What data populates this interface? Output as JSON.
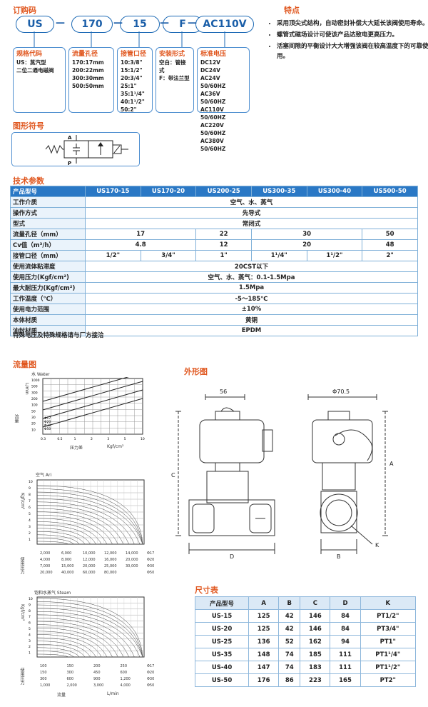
{
  "order": {
    "title": "订购码",
    "codes": [
      "US",
      "170",
      "15",
      "F",
      "AC110V"
    ],
    "dashes": [
      "—",
      "—",
      "—",
      "—"
    ],
    "boxes": [
      {
        "title": "规格代码",
        "lines": [
          "US：蒸汽型",
          "二位二通电磁阀"
        ]
      },
      {
        "title": "流量孔径",
        "lines": [
          "170:17mm",
          "200:22mm",
          "300:30mm",
          "500:50mm"
        ]
      },
      {
        "title": "接管口径",
        "lines": [
          "10:3/8\"",
          "15:1/2\"",
          "20:3/4\"",
          "25:1\"",
          "35:1¹/4\"",
          "40:1¹/2\"",
          "50:2\""
        ]
      },
      {
        "title": "安装形式",
        "lines": [
          "空白：管接式",
          "F：带法兰型"
        ]
      },
      {
        "title": "标准电压",
        "lines": [
          "DC12V",
          "DC24V",
          "AC24V  50/60HZ",
          "AC36V  50/60HZ",
          "AC110V 50/60HZ",
          "AC220V 50/60HZ",
          "AC380V 50/60HZ"
        ]
      }
    ]
  },
  "features": {
    "title": "特点",
    "items": [
      "采用顶尖式结构，自动密封补偿大大延长该阀使用寿命。",
      "螺管式磁场设计可使该产品达致电更高压力。",
      "活塞间隙的平衡设计大大增强该阀在较高温度下的可靠使用。"
    ]
  },
  "symbol": {
    "title": "图形符号",
    "label_a": "A",
    "label_p": "P"
  },
  "spec": {
    "title": "技术参数",
    "header": [
      "产品型号",
      "US170-15",
      "US170-20",
      "US200-25",
      "US300-35",
      "US300-40",
      "US500-50"
    ],
    "rows": [
      {
        "label": "工作介质",
        "cells": [
          {
            "t": "空气、水、蒸气",
            "span": 6
          }
        ]
      },
      {
        "label": "操作方式",
        "cells": [
          {
            "t": "先导式",
            "span": 6
          }
        ]
      },
      {
        "label": "型式",
        "cells": [
          {
            "t": "常闭式",
            "span": 6
          }
        ]
      },
      {
        "label": "流量孔径（mm）",
        "cells": [
          {
            "t": "17",
            "span": 2
          },
          {
            "t": "22",
            "span": 1
          },
          {
            "t": "30",
            "span": 2
          },
          {
            "t": "50",
            "span": 1
          }
        ]
      },
      {
        "label": "Cv值（m³/h）",
        "cells": [
          {
            "t": "4.8",
            "span": 2
          },
          {
            "t": "12",
            "span": 1
          },
          {
            "t": "20",
            "span": 2
          },
          {
            "t": "48",
            "span": 1
          }
        ]
      },
      {
        "label": "接管口径（mm）",
        "cells": [
          {
            "t": "1/2\"",
            "span": 1
          },
          {
            "t": "3/4\"",
            "span": 1
          },
          {
            "t": "1\"",
            "span": 1
          },
          {
            "t": "1¹/4\"",
            "span": 1
          },
          {
            "t": "1¹/2\"",
            "span": 1
          },
          {
            "t": "2\"",
            "span": 1
          }
        ]
      },
      {
        "label": "使用流体粘滞度",
        "cells": [
          {
            "t": "20CST以下",
            "span": 6
          }
        ]
      },
      {
        "label": "使用压力(Kgf/cm²)",
        "cells": [
          {
            "t": "空气、水、蒸气：0.1-1.5Mpa",
            "span": 6
          }
        ]
      },
      {
        "label": "最大耐压力(Kgf/cm²)",
        "cells": [
          {
            "t": "1.5Mpa",
            "span": 6
          }
        ]
      },
      {
        "label": "工作温度（℃）",
        "cells": [
          {
            "t": "-5～185℃",
            "span": 6
          }
        ]
      },
      {
        "label": "使用电力范围",
        "cells": [
          {
            "t": "±10%",
            "span": 6
          }
        ]
      },
      {
        "label": "本体材质",
        "cells": [
          {
            "t": "黄铜",
            "span": 6
          }
        ]
      },
      {
        "label": "油封材质",
        "cells": [
          {
            "t": "EPDM",
            "span": 6
          }
        ]
      }
    ],
    "note": "特殊电压及特殊规格请与厂方接洽"
  },
  "flow": {
    "title": "流量图",
    "water": {
      "title": "水  Water",
      "ylabel": "L/min",
      "xlabel": "压力差",
      "xunit": "Kgf/cm²",
      "side": "流量",
      "xticks": [
        "0.3",
        "0.5",
        "1",
        "2",
        "3",
        "5",
        "10"
      ],
      "yticks": [
        "1000",
        "500",
        "300",
        "200",
        "100",
        "50",
        "30",
        "20",
        "10"
      ],
      "curve_labels": [
        "Φ50",
        "Φ30",
        "Φ20",
        "Φ17"
      ]
    },
    "air": {
      "title": "空气   Ari",
      "ylabel": "Kgf/cm²",
      "yticks": [
        "10",
        "9",
        "8",
        "7",
        "6",
        "5",
        "4",
        "3",
        "2",
        "1"
      ],
      "side": "使用压力",
      "rows": [
        [
          "2,000",
          "6,000",
          "10,000",
          "12,000",
          "14,000"
        ],
        [
          "4,000",
          "8,000",
          "12,000",
          "16,000",
          "20,000"
        ],
        [
          "7,000",
          "15,000",
          "20,000",
          "25,000",
          "30,000"
        ],
        [
          "20,000",
          "40,000",
          "60,000",
          "80,000",
          ""
        ]
      ],
      "diam": [
        "Φ17",
        "Φ20",
        "Φ30",
        "Φ50"
      ]
    },
    "steam": {
      "title": "饱和水蒸气  Steam",
      "ylabel": "Kgf/cm²",
      "yticks": [
        "10",
        "9",
        "8",
        "7",
        "6",
        "5",
        "4",
        "3",
        "2",
        "1"
      ],
      "side": "使用压力",
      "rows": [
        [
          "100",
          "150",
          "200",
          "250"
        ],
        [
          "150",
          "300",
          "450",
          "600"
        ],
        [
          "300",
          "600",
          "900",
          "1,200"
        ],
        [
          "1,000",
          "2,000",
          "3,000",
          "4,000"
        ]
      ],
      "diam": [
        "Φ17",
        "Φ20",
        "Φ30",
        "Φ50"
      ],
      "x1": "流量",
      "x2": "L/min"
    }
  },
  "outline": {
    "title": "外形图",
    "d56": "56",
    "d705": "Φ70.5",
    "c": "C",
    "d": "D",
    "a": "A",
    "b": "B",
    "k": "K"
  },
  "dims": {
    "title": "尺寸表",
    "header": [
      "产品型号",
      "A",
      "B",
      "C",
      "D",
      "K"
    ],
    "rows": [
      [
        "US-15",
        "125",
        "42",
        "146",
        "84",
        "PT1/2\""
      ],
      [
        "US-20",
        "125",
        "42",
        "146",
        "84",
        "PT3/4\""
      ],
      [
        "US-25",
        "136",
        "52",
        "162",
        "94",
        "PT1\""
      ],
      [
        "US-35",
        "148",
        "74",
        "185",
        "111",
        "PT1¹/4\""
      ],
      [
        "US-40",
        "147",
        "74",
        "183",
        "111",
        "PT1¹/2\""
      ],
      [
        "US-50",
        "176",
        "86",
        "223",
        "165",
        "PT2\""
      ]
    ]
  }
}
